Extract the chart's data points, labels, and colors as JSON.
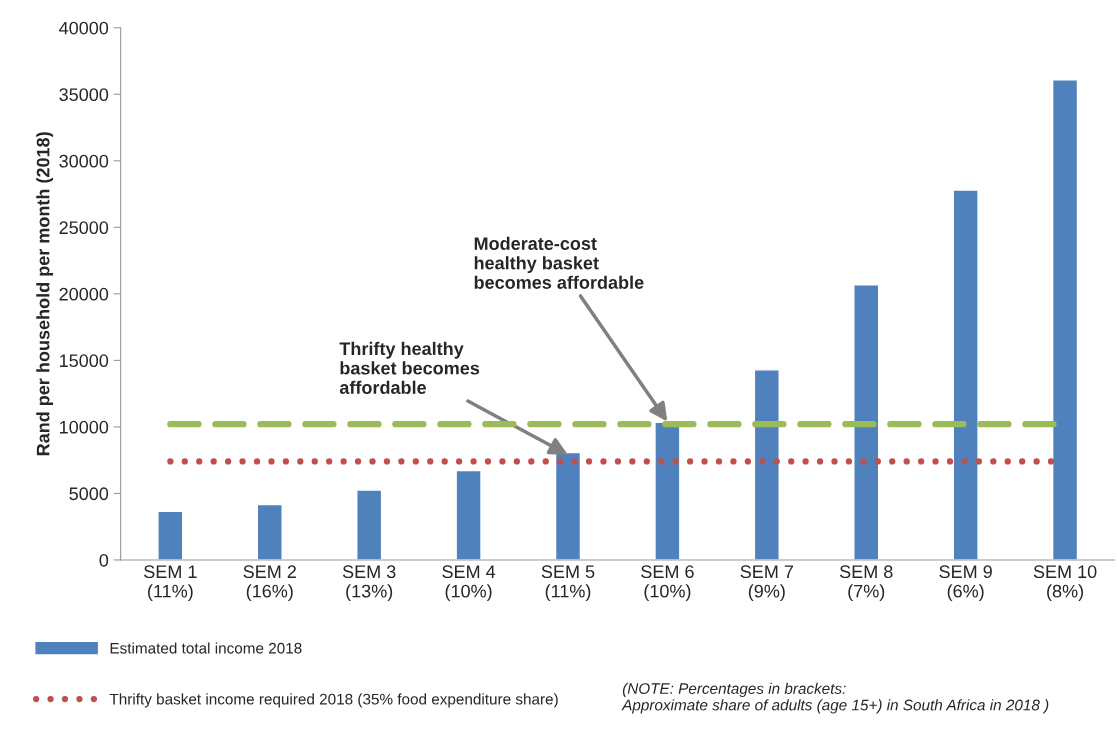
{
  "chart_data": {
    "type": "bar",
    "ylabel": "Rand per household per month (2018)",
    "categories": [
      "SEM 1\n(11%)",
      "SEM 2\n(16%)",
      "SEM 3\n(13%)",
      "SEM 4\n(10%)",
      "SEM 5\n(11%)",
      "SEM 6\n(10%)",
      "SEM 7\n(9%)",
      "SEM 8\n(7%)",
      "SEM 9\n(6%)",
      "SEM 10\n(8%)"
    ],
    "series": [
      {
        "name": "Estimated total income 2018",
        "color": "#4f81bd",
        "values": [
          3650,
          4170,
          5250,
          6720,
          8080,
          10350,
          14290,
          20680,
          27800,
          36090
        ]
      }
    ],
    "ref_lines": [
      {
        "axis": "y",
        "value": 7400,
        "label": "Thrifty basket income required 2018 (35% food expenditure share)",
        "color": "#c0504d",
        "line_style": "dotted"
      },
      {
        "axis": "y",
        "value": 10200,
        "color": "#9bbb59",
        "line_style": "dashed"
      }
    ],
    "annotations": [
      {
        "text": "Thrifty healthy\nbasket becomes\naffordable",
        "x": "SEM 5\n(11%)",
        "y": 7900
      },
      {
        "text": "Moderate-cost\nhealthy basket\nbecomes affordable",
        "x": "SEM 6\n(10%)",
        "y": 10400
      },
      "(NOTE: Percentages in brackets:\nApproximate share of adults (age 15+) in South Africa in 2018 )"
    ],
    "ylim": [
      0,
      40000
    ],
    "yticks": [
      0,
      5000,
      10000,
      15000,
      20000,
      25000,
      30000,
      35000,
      40000
    ],
    "grid": false,
    "legend": "bottom"
  }
}
